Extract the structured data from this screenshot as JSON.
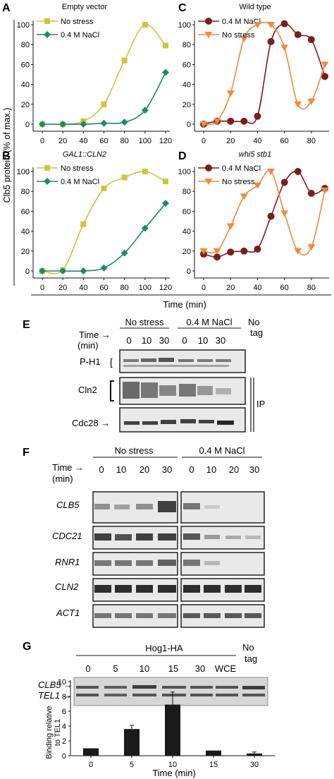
{
  "figure": {
    "y_axis_label": "Clb5 protein (% of max.)",
    "x_axis_label": "Time (min)",
    "panels": {
      "A": {
        "letter": "A",
        "title": "Empty vector"
      },
      "B": {
        "letter": "B",
        "title": "GAL1::CLN2"
      },
      "C": {
        "letter": "C",
        "title": "Wild type"
      },
      "D": {
        "letter": "D",
        "title": "whi5 stb1"
      }
    },
    "blotE": {
      "letter": "E",
      "group_no_stress": "No stress",
      "group_nacl": "0.4 M NaCl",
      "no_tag": [
        "No",
        "tag"
      ],
      "time_label": [
        "Time →",
        "(min)"
      ],
      "times": [
        "0",
        "10",
        "30",
        "0",
        "10",
        "30"
      ],
      "rows": [
        "P-H1",
        "Cln2",
        "Cdc28 →"
      ],
      "ip_label": "IP"
    },
    "blotF": {
      "letter": "F",
      "group_no_stress": "No stress",
      "group_nacl": "0.4 M NaCl",
      "time_label": [
        "Time →",
        "(min)"
      ],
      "times": [
        "0",
        "10",
        "20",
        "30",
        "0",
        "10",
        "20",
        "30"
      ],
      "genes": [
        "CLB5",
        "CDC21",
        "RNR1",
        "CLN2",
        "ACT1"
      ]
    },
    "blotG": {
      "letter": "G",
      "header": "Hog1-HA",
      "no_tag": [
        "No",
        "tag"
      ],
      "lanes": [
        "0",
        "5",
        "10",
        "15",
        "30",
        "WCE"
      ],
      "bands": [
        "CLB5 →",
        "TEL1 →"
      ],
      "chart_ylabel": [
        "Binding relative",
        "to TEL1"
      ],
      "chart_xlabel": "Time (min)"
    }
  },
  "chart_data": [
    {
      "type": "line",
      "panel": "A",
      "title": "Empty vector",
      "xlim": [
        0,
        120
      ],
      "ylim": [
        0,
        100
      ],
      "xticks": [
        0,
        20,
        40,
        60,
        80,
        100,
        120
      ],
      "yticks": [
        0,
        20,
        40,
        60,
        80,
        100
      ],
      "legend": "top-left",
      "series": [
        {
          "name": "No stress",
          "marker": "square",
          "color": "#c8c83a",
          "x": [
            0,
            20,
            40,
            60,
            80,
            100,
            120
          ],
          "y": [
            0,
            0,
            3,
            20,
            64,
            100,
            79
          ]
        },
        {
          "name": "0.4 M NaCl",
          "marker": "diamond",
          "color": "#1d8a6a",
          "x": [
            0,
            20,
            40,
            60,
            80,
            100,
            120
          ],
          "y": [
            0,
            0,
            0,
            1,
            2,
            14,
            52
          ]
        }
      ]
    },
    {
      "type": "line",
      "panel": "B",
      "title": "GAL1::CLN2",
      "xlim": [
        0,
        120
      ],
      "ylim": [
        0,
        100
      ],
      "xticks": [
        0,
        20,
        40,
        60,
        80,
        100,
        120
      ],
      "yticks": [
        0,
        20,
        40,
        60,
        80,
        100
      ],
      "legend": "top-left",
      "series": [
        {
          "name": "No stress",
          "marker": "square",
          "color": "#c8c83a",
          "x": [
            0,
            20,
            40,
            60,
            80,
            100,
            120
          ],
          "y": [
            0,
            1,
            47,
            83,
            94,
            100,
            90
          ]
        },
        {
          "name": "0.4 M NaCl",
          "marker": "diamond",
          "color": "#1d8a6a",
          "x": [
            0,
            20,
            40,
            60,
            80,
            100,
            120
          ],
          "y": [
            0,
            0,
            0,
            3,
            18,
            43,
            68
          ]
        }
      ]
    },
    {
      "type": "line",
      "panel": "C",
      "title": "Wild type",
      "xlim": [
        0,
        90
      ],
      "ylim": [
        0,
        100
      ],
      "xticks": [
        0,
        20,
        40,
        60,
        80
      ],
      "yticks": [
        0,
        20,
        40,
        60,
        80,
        100
      ],
      "legend": "top-left",
      "series": [
        {
          "name": "0.4 M NaCl",
          "marker": "circle",
          "color": "#7b1d1d",
          "x": [
            0,
            10,
            20,
            30,
            40,
            50,
            60,
            70,
            80,
            90
          ],
          "y": [
            0,
            3,
            3,
            3,
            8,
            83,
            101,
            90,
            85,
            48
          ]
        },
        {
          "name": "No stress",
          "marker": "triangle-down",
          "color": "#f08a3c",
          "x": [
            0,
            10,
            20,
            30,
            40,
            50,
            60,
            70,
            80,
            90
          ],
          "y": [
            0,
            3,
            31,
            86,
            100,
            100,
            77,
            20,
            23,
            60
          ]
        }
      ]
    },
    {
      "type": "line",
      "panel": "D",
      "title": "whi5 stb1",
      "xlim": [
        0,
        90
      ],
      "ylim": [
        0,
        100
      ],
      "xticks": [
        0,
        20,
        40,
        60,
        80
      ],
      "yticks": [
        0,
        20,
        40,
        60,
        80,
        100
      ],
      "legend": "top-left",
      "series": [
        {
          "name": "0.4 M NaCl",
          "marker": "circle",
          "color": "#7b1d1d",
          "x": [
            0,
            10,
            20,
            30,
            40,
            50,
            60,
            70,
            80,
            90
          ],
          "y": [
            17,
            14,
            19,
            20,
            22,
            55,
            89,
            100,
            78,
            83
          ]
        },
        {
          "name": "No stress",
          "marker": "triangle-down",
          "color": "#f08a3c",
          "x": [
            0,
            10,
            20,
            30,
            40,
            50,
            60,
            70,
            80,
            90
          ],
          "y": [
            20,
            20,
            45,
            75,
            86,
            100,
            58,
            20,
            24,
            81
          ]
        }
      ]
    },
    {
      "type": "bar",
      "panel": "G",
      "categories": [
        "0",
        "5",
        "10",
        "15",
        "30"
      ],
      "values": [
        1.0,
        3.6,
        6.9,
        0.7,
        0.3
      ],
      "errors": [
        0,
        0.5,
        1.7,
        0,
        0.2
      ],
      "ylim": [
        0,
        10
      ],
      "yticks": [
        0,
        2,
        4,
        6,
        8,
        10
      ],
      "ylabel": "Binding relative to TEL1",
      "xlabel": "Time (min)",
      "bar_color": "#1a1a1a"
    }
  ]
}
